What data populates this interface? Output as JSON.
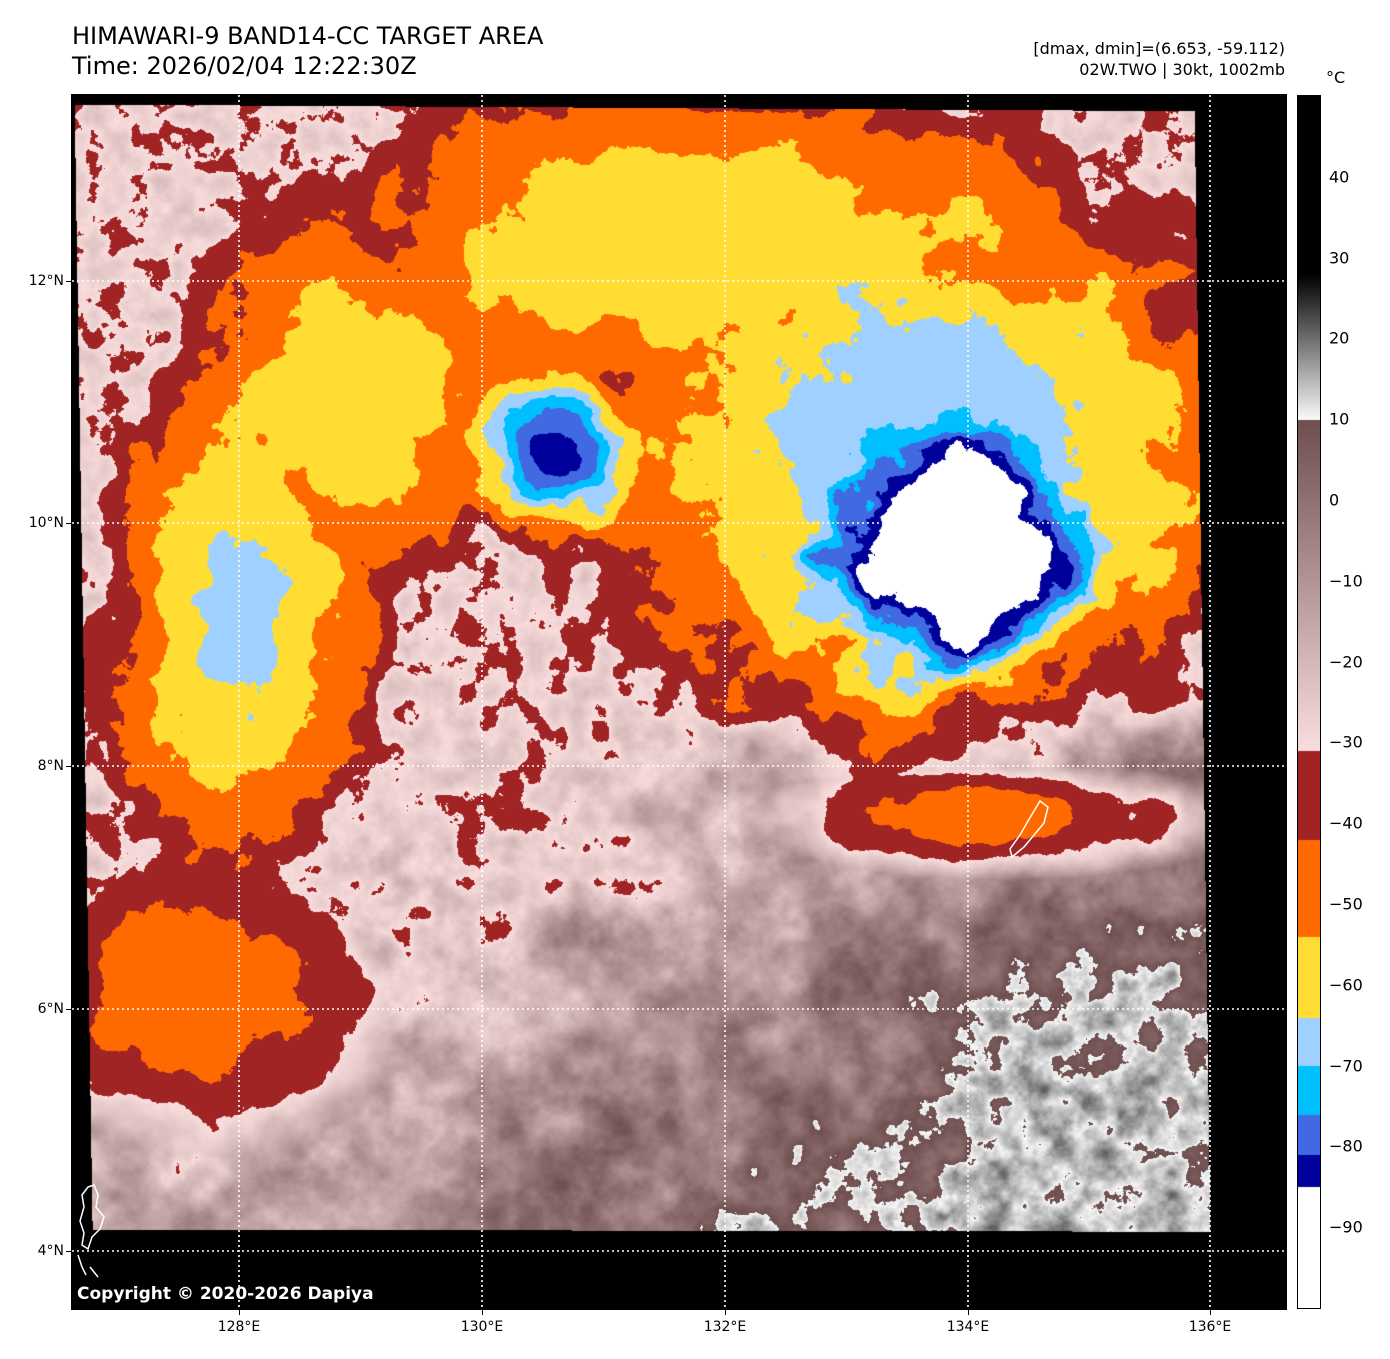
{
  "header": {
    "title": "HIMAWARI-9 BAND14-CC TARGET AREA",
    "time": "Time: 2026/02/04 12:22:30Z",
    "stats": "[dmax, dmin]=(6.653, -59.112)",
    "storm": "02W.TWO | 30kt, 1002mb"
  },
  "map": {
    "lon_labels": [
      "128°E",
      "130°E",
      "132°E",
      "134°E",
      "136°E"
    ],
    "lat_labels": [
      "12°N",
      "10°N",
      "8°N",
      "6°N",
      "4°N"
    ],
    "copyright": "Copyright © 2020-2026 Dapiya"
  },
  "colorbar": {
    "unit": "°C",
    "ticks": [
      "40",
      "30",
      "20",
      "10",
      "0",
      "−10",
      "−20",
      "−30",
      "−40",
      "−50",
      "−60",
      "−70",
      "−80",
      "−90"
    ],
    "range": [
      -100,
      50
    ],
    "bands": [
      {
        "from": -31,
        "to": -42,
        "color": "#a02424"
      },
      {
        "from": -42,
        "to": -54,
        "color": "#ff6a00"
      },
      {
        "from": -54,
        "to": -64,
        "color": "#ffdd33"
      },
      {
        "from": -64,
        "to": -70,
        "color": "#a0d0ff"
      },
      {
        "from": -70,
        "to": -76,
        "color": "#00bfff"
      },
      {
        "from": -76,
        "to": -81,
        "color": "#4169e1"
      },
      {
        "from": -81,
        "to": -85,
        "color": "#00009a"
      },
      {
        "from": -85,
        "to": -100,
        "color": "#ffffff"
      }
    ]
  }
}
